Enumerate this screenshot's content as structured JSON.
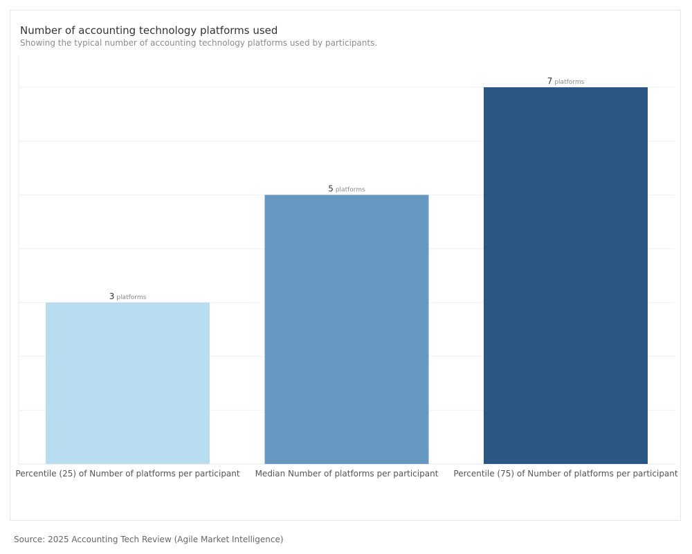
{
  "header": {
    "title": "Number of accounting technology platforms used",
    "subtitle": "Showing the typical number of accounting technology platforms used by participants."
  },
  "footer": {
    "source": "Source: 2025 Accounting Tech Review (Agile Market Intelligence)"
  },
  "chart_data": {
    "type": "bar",
    "title": "Number of accounting technology platforms used",
    "subtitle": "Showing the typical number of accounting technology platforms used by participants.",
    "categories": [
      "Percentile (25) of Number of platforms per participant",
      "Median Number of platforms per participant",
      "Percentile (75) of Number of platforms per participant"
    ],
    "values": [
      3,
      5,
      7
    ],
    "value_unit": "platforms",
    "colors": [
      "#b9ddf0",
      "#6798c1",
      "#2a5783"
    ],
    "ylim": [
      0,
      7.5
    ],
    "y_tick_values": [
      0,
      1,
      2,
      3,
      4,
      5,
      6,
      7
    ],
    "grid": true,
    "xlabel": "",
    "ylabel": ""
  }
}
